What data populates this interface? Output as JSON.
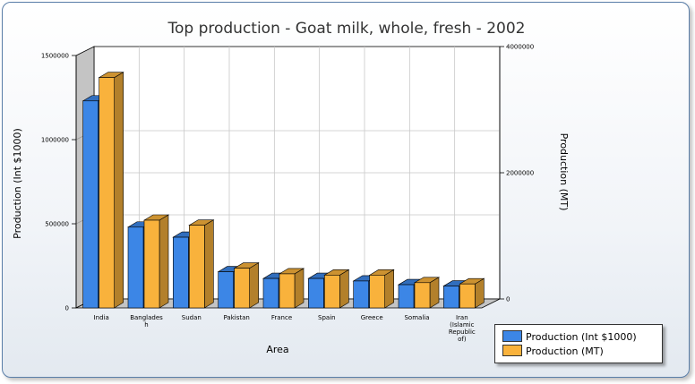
{
  "chart_data": {
    "type": "bar",
    "title": "Top production - Goat milk, whole, fresh - 2002",
    "xlabel": "Area",
    "ylabel_left": "Production (Int $1000)",
    "ylabel_right": "Production (MT)",
    "categories": [
      "India",
      "Bangladesh",
      "Sudan",
      "Pakistan",
      "France",
      "Spain",
      "Greece",
      "Somalia",
      "Iran (Islamic Republic of)"
    ],
    "category_labels": [
      [
        "India"
      ],
      [
        "Banglades",
        "h"
      ],
      [
        "Sudan"
      ],
      [
        "Pakistan"
      ],
      [
        "France"
      ],
      [
        "Spain"
      ],
      [
        "Greece"
      ],
      [
        "Somalia"
      ],
      [
        "Iran",
        "(Islamic",
        "Republic",
        "of)"
      ]
    ],
    "series": [
      {
        "name": "Production (Int $1000)",
        "axis": "left",
        "color": "#3c86e6",
        "values": [
          1230000,
          480000,
          420000,
          215000,
          175000,
          175000,
          160000,
          138000,
          130000
        ]
      },
      {
        "name": "Production (MT)",
        "axis": "right",
        "color": "#f9b23c",
        "values": [
          3650000,
          1390000,
          1310000,
          630000,
          540000,
          520000,
          520000,
          400000,
          380000
        ]
      }
    ],
    "ylim_left": [
      0,
      1500000
    ],
    "ylim_right": [
      0,
      4000000
    ],
    "yticks_left": [
      "0",
      "500000",
      "1000000",
      "1500000"
    ],
    "yticks_right": [
      "0",
      "2000000",
      "4000000"
    ],
    "grid": true,
    "legend_position": "bottom-right"
  },
  "legend": {
    "items": [
      {
        "label": "Production (Int $1000)",
        "color": "#3c86e6"
      },
      {
        "label": "Production (MT)",
        "color": "#f9b23c"
      }
    ]
  }
}
